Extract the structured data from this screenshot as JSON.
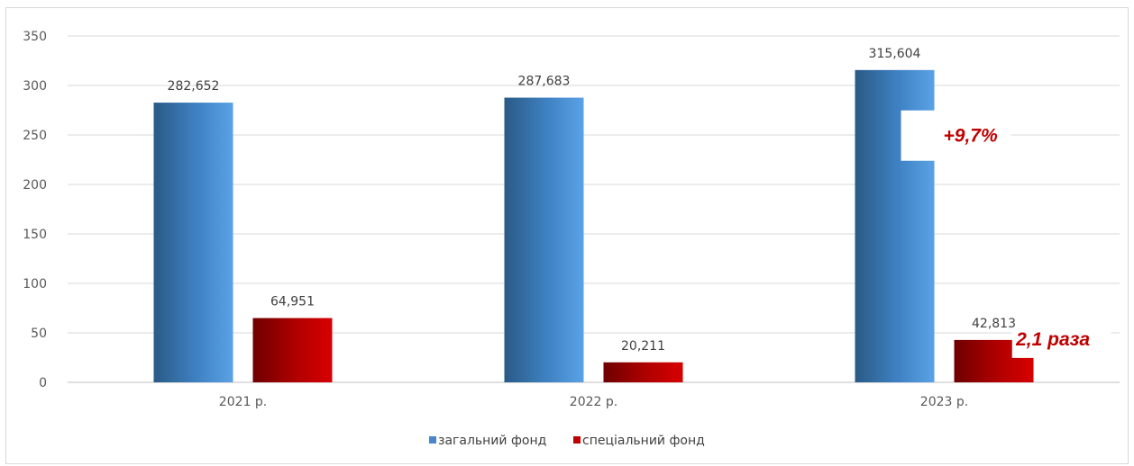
{
  "chart_data": {
    "type": "bar",
    "categories": [
      "2021 р.",
      "2022 р.",
      "2023 р."
    ],
    "series": [
      {
        "name": "загальний фонд",
        "values": [
          282.652,
          287.683,
          315.604
        ],
        "labels": [
          "282,652",
          "287,683",
          "315,604"
        ],
        "color": "#4a90d9"
      },
      {
        "name": "спеціальний фонд",
        "values": [
          64.951,
          20.211,
          42.813
        ],
        "labels": [
          "64,951",
          "20,211",
          "42,813"
        ],
        "color": "#c00000"
      }
    ],
    "ylim": [
      0,
      350
    ],
    "yticks": [
      0,
      50,
      100,
      150,
      200,
      250,
      300,
      350
    ],
    "grid": true,
    "legend": "bottom",
    "annotations": [
      {
        "text": "+9,7%",
        "series": 0,
        "category": 2
      },
      {
        "text": "2,1 раза",
        "series": 1,
        "category": 2
      }
    ]
  }
}
